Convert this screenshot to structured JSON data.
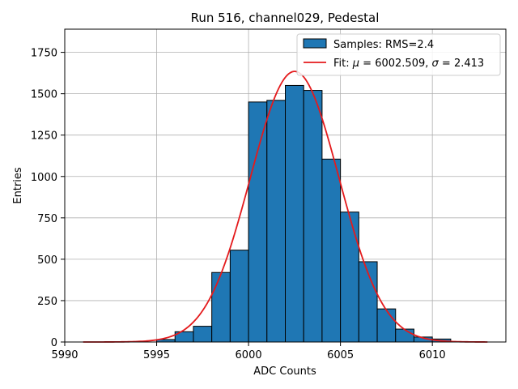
{
  "chart_data": {
    "type": "bar",
    "title": "Run 516, channel029, Pedestal",
    "xlabel": "ADC Counts",
    "ylabel": "Entries",
    "xlim": [
      5990,
      6014
    ],
    "ylim": [
      0,
      1890
    ],
    "xticks": [
      5990,
      5995,
      6000,
      6005,
      6010
    ],
    "yticks": [
      0,
      250,
      500,
      750,
      1000,
      1250,
      1500,
      1750
    ],
    "grid": true,
    "legend_position": "top-right",
    "histogram": {
      "name": "Samples: RMS=2.4",
      "color": "#1f77b4",
      "bin_width": 1,
      "bins": [
        {
          "x0": 5995,
          "value": 15
        },
        {
          "x0": 5996,
          "value": 62
        },
        {
          "x0": 5997,
          "value": 95
        },
        {
          "x0": 5998,
          "value": 420
        },
        {
          "x0": 5999,
          "value": 555
        },
        {
          "x0": 6000,
          "value": 1450
        },
        {
          "x0": 6001,
          "value": 1460
        },
        {
          "x0": 6002,
          "value": 1550
        },
        {
          "x0": 6003,
          "value": 1520
        },
        {
          "x0": 6004,
          "value": 1105
        },
        {
          "x0": 6005,
          "value": 785
        },
        {
          "x0": 6006,
          "value": 485
        },
        {
          "x0": 6007,
          "value": 200
        },
        {
          "x0": 6008,
          "value": 78
        },
        {
          "x0": 6009,
          "value": 30
        },
        {
          "x0": 6010,
          "value": 18
        }
      ]
    },
    "fit": {
      "name_prefix": "Fit: ",
      "mu_symbol": "μ",
      "sigma_symbol": "σ",
      "mu": 6002.509,
      "sigma": 2.413,
      "mu_text": "6002.509",
      "sigma_text": "2.413",
      "amplitude": 1635,
      "x_range": [
        5991,
        6013
      ],
      "color": "#e41a1c"
    }
  }
}
